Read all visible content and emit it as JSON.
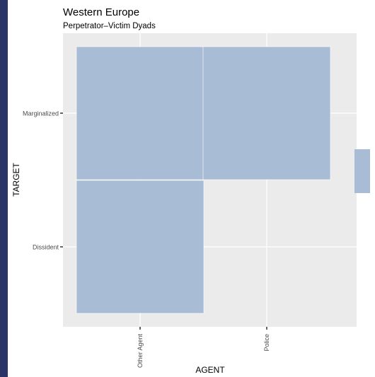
{
  "chart_data": {
    "type": "heatmap",
    "title": "Western Europe",
    "subtitle": "Perpetrator–Victim Dyads",
    "xlabel": "AGENT",
    "ylabel": "TARGET",
    "x_categories": [
      "Other Agent",
      "Police"
    ],
    "y_categories": [
      "Dissident",
      "Marginalized"
    ],
    "tiles": [
      {
        "x": "Other Agent",
        "y": "Marginalized"
      },
      {
        "x": "Police",
        "y": "Marginalized"
      },
      {
        "x": "Other Agent",
        "y": "Dissident"
      }
    ],
    "fill_color": "#a9bcd6",
    "panel_color": "#ebebeb",
    "grid": true,
    "legend_position": "right"
  }
}
